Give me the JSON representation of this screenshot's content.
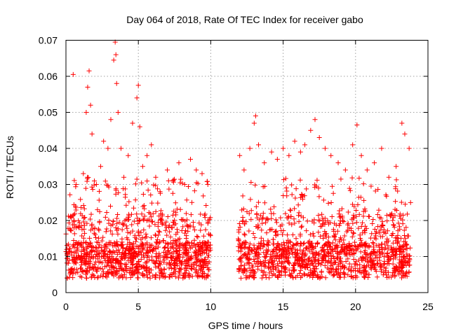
{
  "chart_data": {
    "type": "scatter",
    "title": "Day 064 of 2018, Rate Of TEC Index for receiver gabo",
    "xlabel": "GPS time / hours",
    "ylabel": "ROTI / TECUs",
    "xlim": [
      0,
      25
    ],
    "ylim": [
      0,
      0.07
    ],
    "x_ticks": [
      0,
      5,
      10,
      15,
      20,
      25
    ],
    "x_tick_labels": [
      "0",
      "5",
      "10",
      "15",
      "20",
      "25"
    ],
    "y_ticks": [
      0,
      0.01,
      0.02,
      0.03,
      0.04,
      0.05,
      0.06,
      0.07
    ],
    "y_tick_labels": [
      "0",
      "0.01",
      "0.02",
      "0.03",
      "0.04",
      "0.05",
      "0.06",
      "0.07"
    ],
    "grid": true,
    "marker": "plus",
    "series": [
      {
        "name": "ROTI",
        "color": "#ff0000",
        "data_gaps_hours": [
          [
            10.0,
            11.9
          ],
          [
            23.8,
            25.0
          ]
        ],
        "points": [
          [
            0.05,
            0.012
          ],
          [
            0.3,
            0.021
          ],
          [
            0.5,
            0.0605
          ],
          [
            0.7,
            0.03
          ],
          [
            0.9,
            0.018
          ],
          [
            1.2,
            0.033
          ],
          [
            1.4,
            0.05
          ],
          [
            1.5,
            0.057
          ],
          [
            1.6,
            0.0615
          ],
          [
            1.7,
            0.052
          ],
          [
            1.8,
            0.044
          ],
          [
            2.1,
            0.03
          ],
          [
            2.4,
            0.035
          ],
          [
            2.6,
            0.042
          ],
          [
            2.9,
            0.04
          ],
          [
            3.1,
            0.048
          ],
          [
            3.3,
            0.0645
          ],
          [
            3.4,
            0.0695
          ],
          [
            3.45,
            0.066
          ],
          [
            3.5,
            0.058
          ],
          [
            3.6,
            0.05
          ],
          [
            3.8,
            0.04
          ],
          [
            4.0,
            0.032
          ],
          [
            4.3,
            0.038
          ],
          [
            4.6,
            0.047
          ],
          [
            4.9,
            0.054
          ],
          [
            5.0,
            0.0575
          ],
          [
            5.1,
            0.046
          ],
          [
            5.3,
            0.035
          ],
          [
            5.6,
            0.038
          ],
          [
            5.9,
            0.041
          ],
          [
            6.2,
            0.032
          ],
          [
            6.5,
            0.028
          ],
          [
            7.0,
            0.034
          ],
          [
            7.4,
            0.031
          ],
          [
            7.8,
            0.036
          ],
          [
            8.2,
            0.03
          ],
          [
            8.6,
            0.037
          ],
          [
            9.0,
            0.034
          ],
          [
            9.4,
            0.033
          ],
          [
            9.8,
            0.03
          ],
          [
            12.0,
            0.038
          ],
          [
            12.3,
            0.034
          ],
          [
            12.7,
            0.04
          ],
          [
            13.0,
            0.047
          ],
          [
            13.1,
            0.049
          ],
          [
            13.3,
            0.041
          ],
          [
            13.7,
            0.036
          ],
          [
            14.2,
            0.039
          ],
          [
            14.6,
            0.037
          ],
          [
            15.0,
            0.04
          ],
          [
            15.4,
            0.038
          ],
          [
            15.8,
            0.042
          ],
          [
            16.2,
            0.039
          ],
          [
            16.5,
            0.041
          ],
          [
            16.9,
            0.045
          ],
          [
            17.2,
            0.048
          ],
          [
            17.5,
            0.043
          ],
          [
            17.9,
            0.04
          ],
          [
            18.3,
            0.038
          ],
          [
            18.8,
            0.036
          ],
          [
            19.3,
            0.034
          ],
          [
            19.8,
            0.041
          ],
          [
            20.1,
            0.0465
          ],
          [
            20.4,
            0.038
          ],
          [
            20.8,
            0.034
          ],
          [
            21.3,
            0.036
          ],
          [
            21.8,
            0.04
          ],
          [
            22.3,
            0.032
          ],
          [
            22.8,
            0.035
          ],
          [
            23.2,
            0.047
          ],
          [
            23.4,
            0.044
          ],
          [
            23.7,
            0.04
          ]
        ]
      }
    ]
  }
}
